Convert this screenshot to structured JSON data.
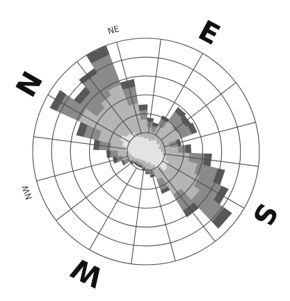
{
  "chart_data": {
    "type": "wind-rose",
    "grid": true,
    "ring_count": 6,
    "sector_count": 16,
    "rotation_deg": -60,
    "r_max": 6,
    "direction_labels": [
      {
        "text": "N",
        "bearing": -60,
        "size": "large"
      },
      {
        "text": "E",
        "bearing": 28,
        "size": "large"
      },
      {
        "text": "S",
        "bearing": 118,
        "size": "large"
      },
      {
        "text": "W",
        "bearing": 206,
        "size": "large"
      },
      {
        "text": "NE",
        "bearing": -15,
        "size": "small"
      },
      {
        "text": "NW",
        "bearing": 251,
        "size": "small"
      }
    ],
    "bands": [
      {
        "color": "#585858",
        "radii": [
          5.6,
          4.7,
          5.2,
          6.0,
          3.9,
          2.5,
          1.8,
          1.6,
          2.1,
          2.9,
          2.8,
          2.9,
          1.9,
          2.4,
          3.5,
          4.3,
          4.8,
          5.6,
          4.1,
          2.4,
          1.4,
          1.2,
          1.0,
          0.9,
          0.9,
          0.9,
          1.0,
          1.4,
          1.8,
          2.1,
          2.8,
          3.8
        ]
      },
      {
        "color": "#8a8a8a",
        "radii": [
          5.2,
          4.3,
          4.9,
          5.5,
          3.5,
          2.2,
          1.6,
          1.4,
          1.9,
          2.6,
          2.5,
          2.6,
          1.7,
          2.1,
          3.1,
          3.9,
          4.4,
          5.1,
          3.7,
          2.2,
          1.3,
          1.1,
          0.9,
          0.8,
          0.8,
          0.8,
          0.9,
          1.3,
          1.6,
          1.9,
          2.5,
          3.4
        ]
      },
      {
        "color": "#b5b5b5",
        "radii": [
          3.9,
          3.2,
          3.5,
          3.8,
          2.6,
          1.7,
          1.3,
          1.1,
          1.5,
          2.0,
          1.9,
          2.0,
          1.3,
          1.7,
          2.3,
          2.8,
          3.1,
          3.5,
          2.7,
          1.6,
          1.0,
          0.9,
          0.8,
          0.7,
          0.7,
          0.7,
          0.8,
          1.0,
          1.3,
          1.5,
          1.9,
          2.6
        ]
      },
      {
        "color": "#e3e3e3",
        "radii": [
          1.5,
          1.3,
          1.2,
          0.9,
          0.8,
          0.7,
          0.7,
          0.6,
          0.7,
          0.8,
          0.7,
          0.8,
          0.7,
          0.8,
          0.9,
          1.1,
          1.3,
          1.4,
          1.1,
          0.8,
          0.6,
          0.6,
          0.5,
          0.5,
          0.5,
          0.5,
          0.6,
          0.7,
          0.8,
          0.9,
          1.1,
          1.3
        ]
      }
    ]
  }
}
